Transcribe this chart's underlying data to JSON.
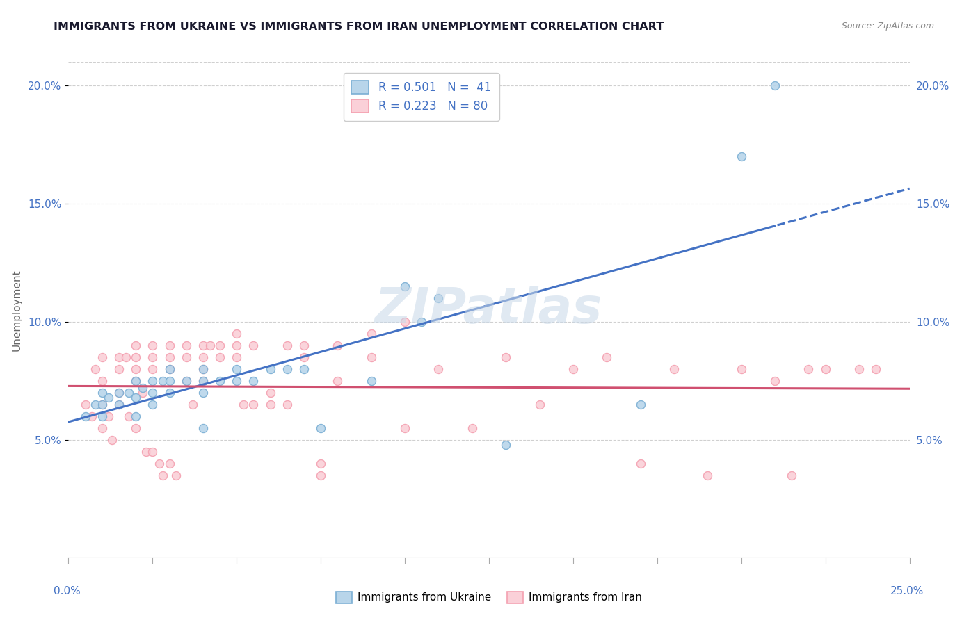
{
  "title": "IMMIGRANTS FROM UKRAINE VS IMMIGRANTS FROM IRAN UNEMPLOYMENT CORRELATION CHART",
  "source": "Source: ZipAtlas.com",
  "ylabel": "Unemployment",
  "xlim": [
    0.0,
    0.25
  ],
  "ylim": [
    0.0,
    0.21
  ],
  "yticks": [
    0.05,
    0.1,
    0.15,
    0.2
  ],
  "ytick_labels": [
    "5.0%",
    "10.0%",
    "15.0%",
    "20.0%"
  ],
  "ukraine_color": "#7BAFD4",
  "ukraine_color_fill": "#B8D5EA",
  "iran_color": "#F4A0B0",
  "iran_color_fill": "#FAD0D8",
  "trend_ukraine_color": "#4472C4",
  "trend_iran_color": "#D05070",
  "ukraine_x": [
    0.005,
    0.008,
    0.01,
    0.01,
    0.01,
    0.012,
    0.015,
    0.015,
    0.018,
    0.02,
    0.02,
    0.02,
    0.022,
    0.025,
    0.025,
    0.025,
    0.028,
    0.03,
    0.03,
    0.03,
    0.035,
    0.04,
    0.04,
    0.04,
    0.04,
    0.045,
    0.05,
    0.05,
    0.055,
    0.06,
    0.065,
    0.07,
    0.075,
    0.09,
    0.1,
    0.105,
    0.11,
    0.13,
    0.17,
    0.2,
    0.21
  ],
  "ukraine_y": [
    0.06,
    0.065,
    0.07,
    0.065,
    0.06,
    0.068,
    0.07,
    0.065,
    0.07,
    0.075,
    0.068,
    0.06,
    0.072,
    0.075,
    0.07,
    0.065,
    0.075,
    0.08,
    0.075,
    0.07,
    0.075,
    0.08,
    0.075,
    0.07,
    0.055,
    0.075,
    0.08,
    0.075,
    0.075,
    0.08,
    0.08,
    0.08,
    0.055,
    0.075,
    0.115,
    0.1,
    0.11,
    0.048,
    0.065,
    0.17,
    0.2
  ],
  "iran_x": [
    0.005,
    0.007,
    0.008,
    0.01,
    0.01,
    0.01,
    0.01,
    0.012,
    0.013,
    0.015,
    0.015,
    0.015,
    0.015,
    0.017,
    0.018,
    0.02,
    0.02,
    0.02,
    0.02,
    0.02,
    0.022,
    0.023,
    0.025,
    0.025,
    0.025,
    0.025,
    0.027,
    0.028,
    0.03,
    0.03,
    0.03,
    0.03,
    0.032,
    0.035,
    0.035,
    0.035,
    0.037,
    0.04,
    0.04,
    0.04,
    0.04,
    0.042,
    0.045,
    0.045,
    0.05,
    0.05,
    0.05,
    0.052,
    0.055,
    0.055,
    0.06,
    0.06,
    0.065,
    0.065,
    0.07,
    0.07,
    0.075,
    0.075,
    0.08,
    0.08,
    0.09,
    0.09,
    0.1,
    0.1,
    0.11,
    0.12,
    0.13,
    0.14,
    0.15,
    0.16,
    0.17,
    0.18,
    0.19,
    0.2,
    0.21,
    0.215,
    0.22,
    0.225,
    0.235,
    0.24
  ],
  "iran_y": [
    0.065,
    0.06,
    0.08,
    0.085,
    0.075,
    0.065,
    0.055,
    0.06,
    0.05,
    0.085,
    0.08,
    0.07,
    0.065,
    0.085,
    0.06,
    0.09,
    0.085,
    0.08,
    0.075,
    0.055,
    0.07,
    0.045,
    0.09,
    0.085,
    0.08,
    0.045,
    0.04,
    0.035,
    0.09,
    0.085,
    0.08,
    0.04,
    0.035,
    0.09,
    0.085,
    0.075,
    0.065,
    0.09,
    0.085,
    0.08,
    0.075,
    0.09,
    0.09,
    0.085,
    0.095,
    0.09,
    0.085,
    0.065,
    0.09,
    0.065,
    0.07,
    0.065,
    0.09,
    0.065,
    0.09,
    0.085,
    0.04,
    0.035,
    0.09,
    0.075,
    0.085,
    0.095,
    0.1,
    0.055,
    0.08,
    0.055,
    0.085,
    0.065,
    0.08,
    0.085,
    0.04,
    0.08,
    0.035,
    0.08,
    0.075,
    0.035,
    0.08,
    0.08,
    0.08,
    0.08
  ],
  "legend_ukraine_label": "R = 0.501   N =  41",
  "legend_iran_label": "R = 0.223   N = 80",
  "bottom_legend_ukraine": "Immigrants from Ukraine",
  "bottom_legend_iran": "Immigrants from Iran",
  "watermark_text": "ZIPatlas"
}
